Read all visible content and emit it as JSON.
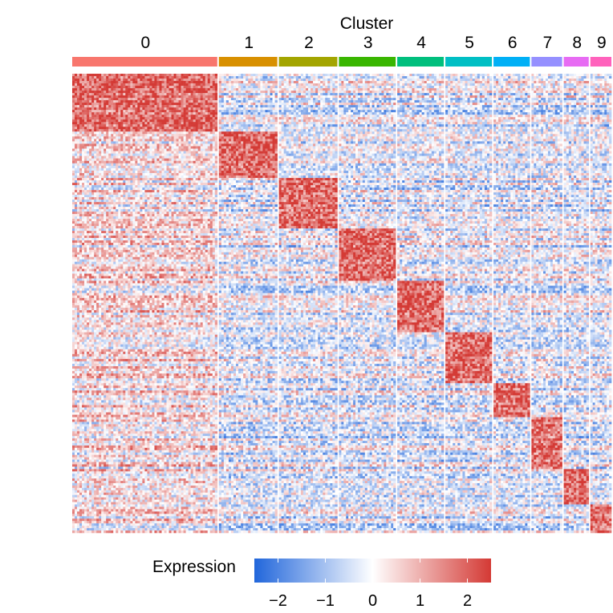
{
  "chart_data": {
    "type": "heatmap",
    "title": "Cluster",
    "clusters": [
      {
        "label": "0",
        "color": "#F8766D",
        "cells": 0.259
      },
      {
        "label": "1",
        "color": "#D89000",
        "cells": 0.106
      },
      {
        "label": "2",
        "color": "#A3A500",
        "cells": 0.106
      },
      {
        "label": "3",
        "color": "#39B600",
        "cells": 0.103
      },
      {
        "label": "4",
        "color": "#00BF7D",
        "cells": 0.085
      },
      {
        "label": "5",
        "color": "#00BFC4",
        "cells": 0.085
      },
      {
        "label": "6",
        "color": "#00B0F6",
        "cells": 0.067
      },
      {
        "label": "7",
        "color": "#9590FF",
        "cells": 0.057
      },
      {
        "label": "8",
        "color": "#E76BF3",
        "cells": 0.047
      },
      {
        "label": "9",
        "color": "#FF62BC",
        "cells": 0.04
      }
    ],
    "marker_gene_fraction": [
      0.126,
      0.101,
      0.11,
      0.114,
      0.112,
      0.111,
      0.074,
      0.113,
      0.077,
      0.062
    ],
    "legend": {
      "title": "Expression",
      "ticks": [
        "−2",
        "−1",
        "0",
        "1",
        "2"
      ],
      "tick_values": [
        -2,
        -1,
        0,
        1,
        2
      ],
      "range": [
        -2.5,
        2.5
      ],
      "low_color": "#2166DB",
      "mid_color": "#FFFFFF",
      "high_color": "#D43A35"
    }
  }
}
